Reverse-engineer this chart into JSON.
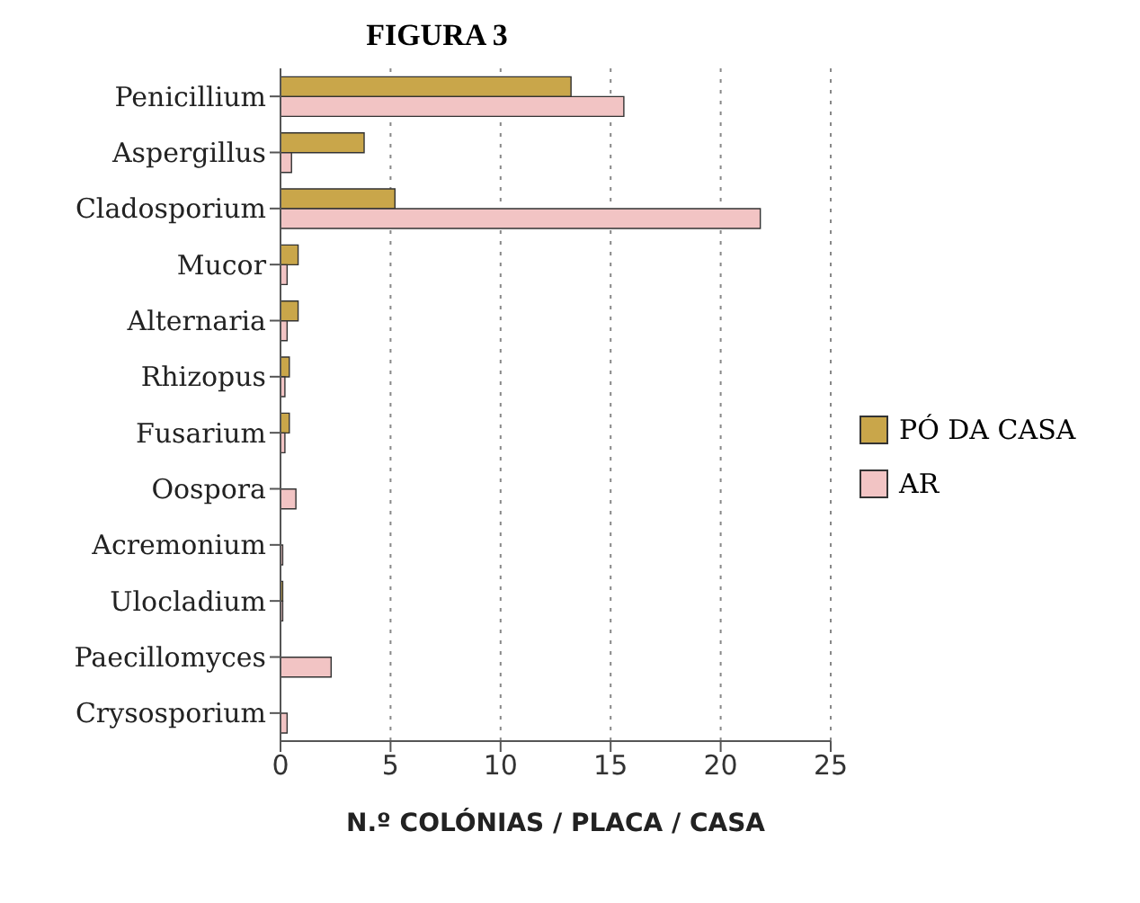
{
  "chart_data": {
    "type": "bar",
    "orientation": "horizontal",
    "title": "FIGURA 3",
    "xlabel": "N.º COLÓNIAS / PLACA / CASA",
    "categories": [
      "Penicillium",
      "Aspergillus",
      "Cladosporium",
      "Mucor",
      "Alternaria",
      "Rhizopus",
      "Fusarium",
      "Oospora",
      "Acremonium",
      "Ulocladium",
      "Paecillomyces",
      "Crysosporium"
    ],
    "series": [
      {
        "name": "PÓ DA CASA",
        "color": "#c9a64a",
        "values": [
          13.2,
          3.8,
          5.2,
          0.8,
          0.8,
          0.4,
          0.4,
          0,
          0,
          0.1,
          0,
          0
        ]
      },
      {
        "name": "AR",
        "color": "#f2c4c4",
        "values": [
          15.6,
          0.5,
          21.8,
          0.3,
          0.3,
          0.2,
          0.2,
          0.7,
          0.1,
          0.1,
          2.3,
          0.3
        ]
      }
    ],
    "xlim": [
      0,
      25
    ],
    "xticks": [
      0,
      5,
      10,
      15,
      20,
      25
    ],
    "grid": "x",
    "legend": "right"
  }
}
